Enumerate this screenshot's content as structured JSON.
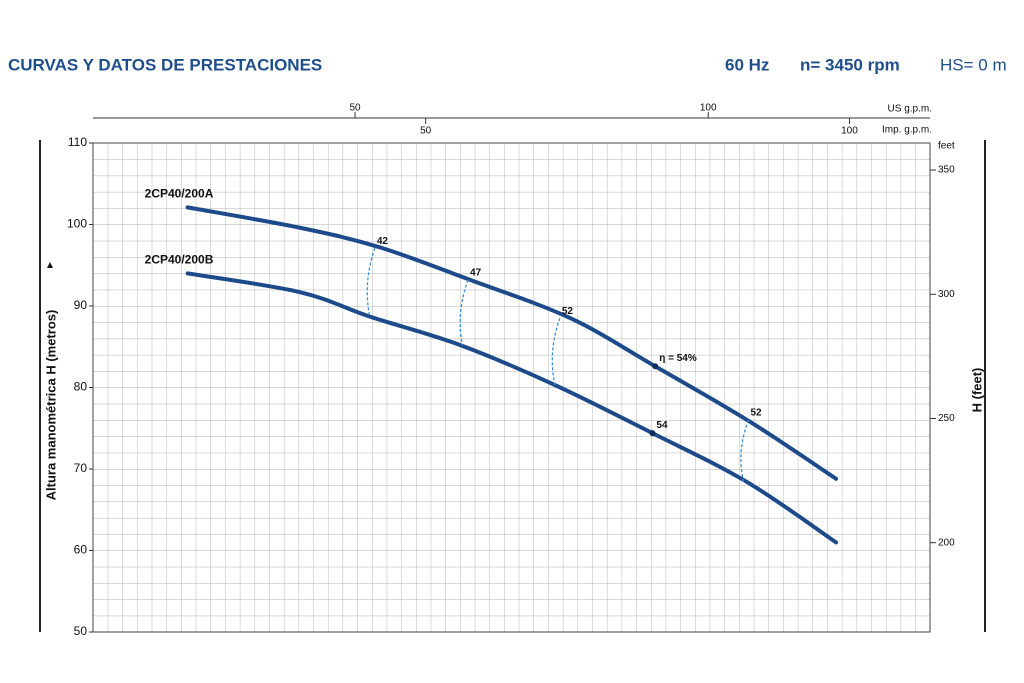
{
  "chart_data": {
    "type": "line",
    "title": "CURVAS Y DATOS DE PRESTACIONES",
    "frequency": "60 Hz",
    "speed": "n= 3450 rpm",
    "suction": "HS= 0 m",
    "ylabel": "Altura manométrica H  (metros)",
    "y2label": "H (feet)",
    "y2unit": "feet",
    "xlabel": "US g.p.m.",
    "x2label": "Imp. g.p.m.",
    "xlim": [
      12.9,
      131.4
    ],
    "xticks": [
      50,
      100
    ],
    "x2lim": [
      10.75,
      109.5
    ],
    "x2ticks": [
      50,
      100
    ],
    "ylim": [
      50,
      110
    ],
    "yticks": [
      50,
      60,
      70,
      80,
      90,
      100,
      110
    ],
    "y2lim": [
      164.04,
      360.89
    ],
    "y2ticks": [
      200,
      250,
      300,
      350
    ],
    "grid": true,
    "series": [
      {
        "name": "2CP40/200A",
        "color": "#1d4a8a",
        "x": [
          26.3,
          42.2,
          53.5,
          66.3,
          80.5,
          92.5,
          105.9,
          118.1
        ],
        "values": [
          102.1,
          99.6,
          97.2,
          93.2,
          88.5,
          82.6,
          75.8,
          68.8
        ]
      },
      {
        "name": "2CP40/200B",
        "color": "#1d4a8a",
        "x": [
          26.3,
          42.2,
          52.1,
          64.9,
          78.3,
          92.1,
          105.5,
          118.1
        ],
        "values": [
          94.0,
          91.7,
          88.7,
          85.2,
          80.3,
          74.4,
          68.4,
          61.0
        ]
      }
    ],
    "efficiency": [
      {
        "label": "42",
        "x": [
          52.8,
          52.1
        ],
        "y": [
          97.1,
          88.6
        ]
      },
      {
        "label": "47",
        "x": [
          66.0,
          65.2
        ],
        "y": [
          93.2,
          85.2
        ]
      },
      {
        "label": "52",
        "x": [
          79.0,
          78.3
        ],
        "y": [
          88.5,
          80.3
        ]
      },
      {
        "label": "52",
        "x": [
          105.7,
          105.0
        ],
        "y": [
          76.0,
          68.4
        ]
      }
    ],
    "efficiency_points": [
      {
        "label": "η = 54%",
        "x": 92.5,
        "y": 82.6
      },
      {
        "label": "54",
        "x": 92.1,
        "y": 74.4
      }
    ]
  }
}
